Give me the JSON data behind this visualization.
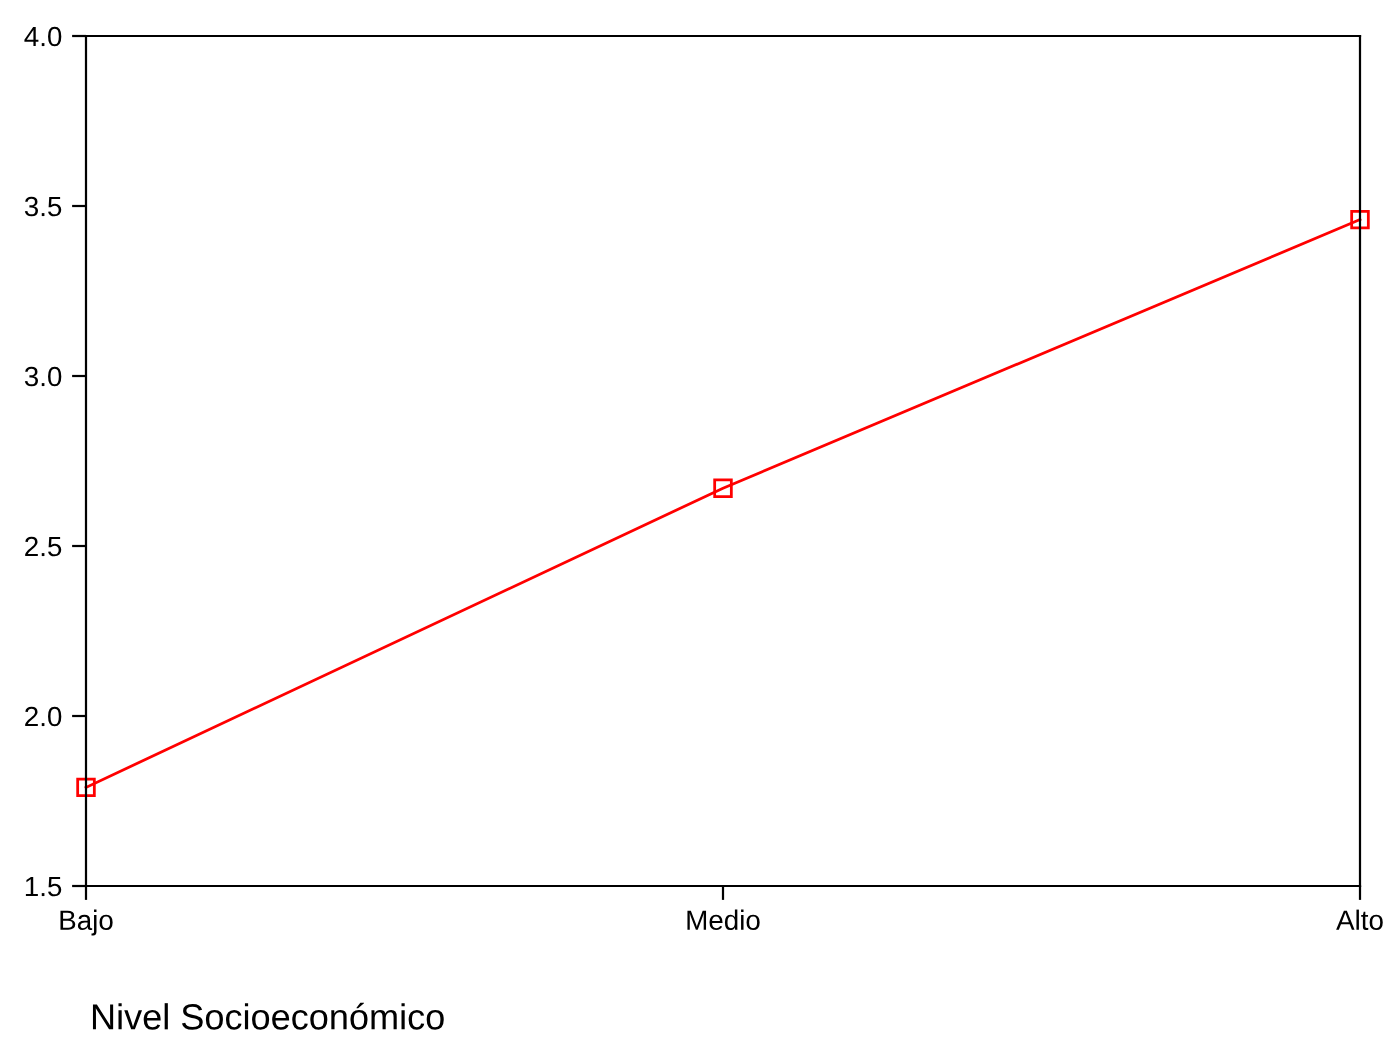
{
  "chart_data": {
    "type": "line",
    "xlabel": "Nivel Socioeconómico",
    "categories": [
      "Bajo",
      "Medio",
      "Alto"
    ],
    "series": [
      {
        "color": "#ff0000",
        "values": [
          1.79,
          2.67,
          3.46
        ]
      }
    ],
    "ylim": [
      1.5,
      4.0
    ],
    "yticks": [
      {
        "value": 1.5,
        "label": "1.5"
      },
      {
        "value": 2.0,
        "label": "2.0"
      },
      {
        "value": 2.5,
        "label": "2.5"
      },
      {
        "value": 3.0,
        "label": "3.0"
      },
      {
        "value": 3.5,
        "label": "3.5"
      },
      {
        "value": 4.0,
        "label": "4.0"
      }
    ],
    "marker": "square",
    "line_style": "solid",
    "grid": false,
    "legend": false
  }
}
